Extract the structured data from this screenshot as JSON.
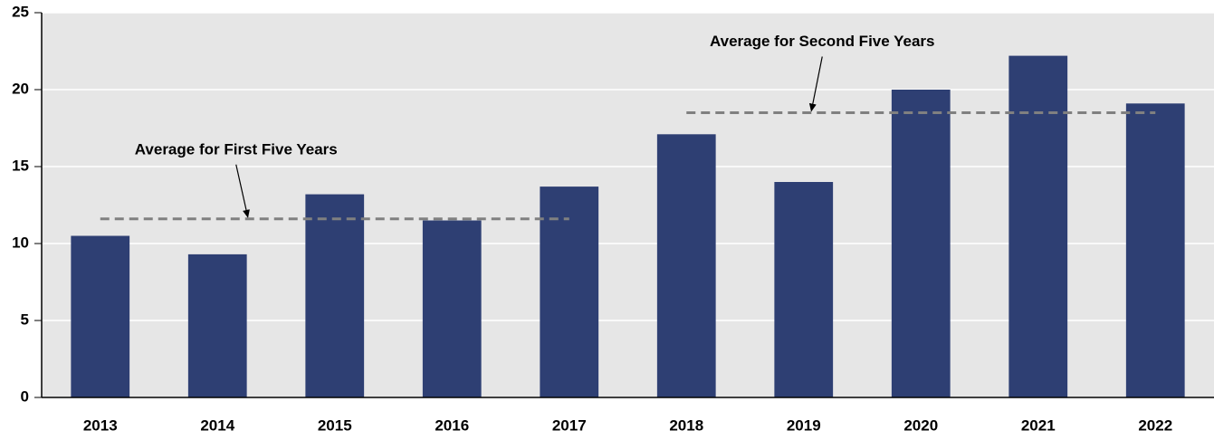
{
  "chart_data": {
    "type": "bar",
    "categories": [
      "2013",
      "2014",
      "2015",
      "2016",
      "2017",
      "2018",
      "2019",
      "2020",
      "2021",
      "2022"
    ],
    "values": [
      10.5,
      9.3,
      13.2,
      11.5,
      13.7,
      17.1,
      14.0,
      20.0,
      22.2,
      19.1
    ],
    "color": "#2e3f73",
    "ylim": [
      0,
      25
    ],
    "yticks": [
      0,
      5,
      10,
      15,
      20,
      25
    ],
    "grid": true,
    "annotations": [
      {
        "label": "Average for First Five Years",
        "value": 11.6,
        "from": "2013",
        "to": "2017"
      },
      {
        "label": "Average for Second Five Years",
        "value": 18.5,
        "from": "2018",
        "to": "2022"
      }
    ]
  }
}
